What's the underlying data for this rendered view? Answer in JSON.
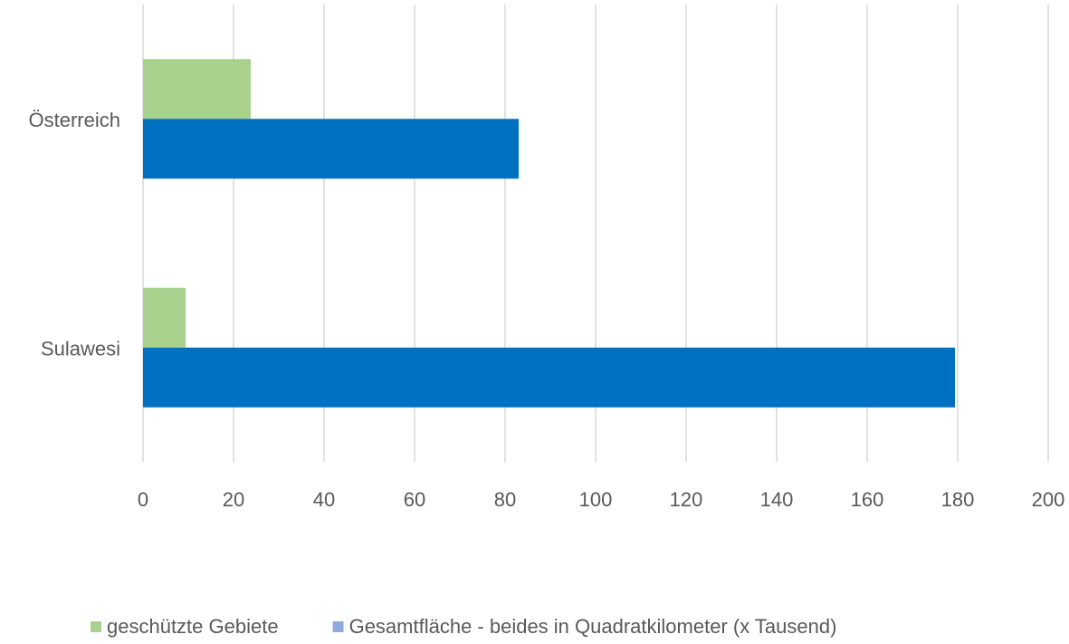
{
  "chart_data": {
    "type": "barh",
    "categories": [
      "Österreich",
      "Sulawesi"
    ],
    "series": [
      {
        "name": "geschützte Gebiete",
        "color": "#a9d18e",
        "values": [
          23.8,
          9.4
        ]
      },
      {
        "name": "Gesamtfläche - beides in Quadratkilometer (x Tausend)",
        "color": "#0070c0",
        "legend_color": "#8faadc",
        "values": [
          83,
          179.4
        ]
      }
    ],
    "xlim": [
      0,
      200
    ],
    "xticks": [
      0,
      20,
      40,
      60,
      80,
      100,
      120,
      140,
      160,
      180,
      200
    ],
    "grid": true,
    "legend": "bottom"
  }
}
